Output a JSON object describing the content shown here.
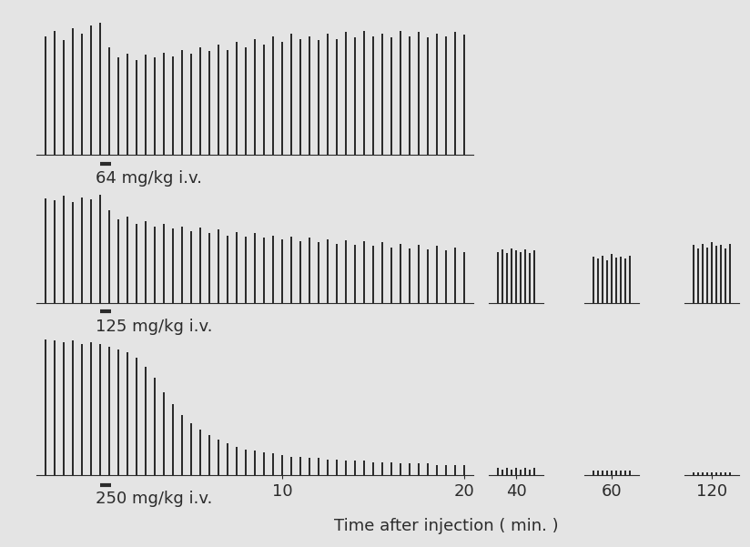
{
  "xlabel": "Time after injection ( min. )",
  "chart_data": [
    {
      "type": "bar",
      "annotation": "64 mg/kg i.v.",
      "color": "#2b2b2b",
      "tick_labels": false,
      "injection": {
        "start": 0,
        "end": 0.6
      },
      "panels": [
        {
          "xlim": [
            -3.5,
            20.5
          ],
          "xticks": [],
          "ylim": [
            0,
            100
          ],
          "x": [
            -3,
            -2.5,
            -2,
            -1.5,
            -1,
            -0.5,
            0,
            0.5,
            1,
            1.5,
            2,
            2.5,
            3,
            3.5,
            4,
            4.5,
            5,
            5.5,
            6,
            6.5,
            7,
            7.5,
            8,
            8.5,
            9,
            9.5,
            10,
            10.5,
            11,
            11.5,
            12,
            12.5,
            13,
            13.5,
            14,
            14.5,
            15,
            15.5,
            16,
            16.5,
            17,
            17.5,
            18,
            18.5,
            19,
            19.5,
            20
          ],
          "values": [
            88,
            92,
            85,
            94,
            90,
            96,
            98,
            80,
            72,
            75,
            70,
            74,
            72,
            76,
            73,
            78,
            75,
            80,
            77,
            82,
            78,
            84,
            80,
            86,
            82,
            88,
            84,
            90,
            86,
            88,
            85,
            90,
            86,
            91,
            87,
            92,
            88,
            90,
            87,
            92,
            88,
            91,
            87,
            90,
            88,
            91,
            89
          ]
        }
      ]
    },
    {
      "type": "bar",
      "annotation": "125 mg/kg i.v.",
      "color": "#2b2b2b",
      "tick_labels": false,
      "injection": {
        "start": 0,
        "end": 0.6
      },
      "panels": [
        {
          "xlim": [
            -3.5,
            20.5
          ],
          "xticks": [],
          "ylim": [
            0,
            100
          ],
          "x": [
            -3,
            -2.5,
            -2,
            -1.5,
            -1,
            -0.5,
            0,
            0.5,
            1,
            1.5,
            2,
            2.5,
            3,
            3.5,
            4,
            4.5,
            5,
            5.5,
            6,
            6.5,
            7,
            7.5,
            8,
            8.5,
            9,
            9.5,
            10,
            10.5,
            11,
            11.5,
            12,
            12.5,
            13,
            13.5,
            14,
            14.5,
            15,
            15.5,
            16,
            16.5,
            17,
            17.5,
            18,
            18.5,
            19,
            19.5,
            20
          ],
          "values": [
            90,
            88,
            92,
            87,
            91,
            89,
            93,
            80,
            72,
            74,
            68,
            70,
            66,
            68,
            64,
            66,
            62,
            65,
            60,
            63,
            58,
            61,
            57,
            60,
            56,
            58,
            55,
            57,
            53,
            56,
            52,
            55,
            51,
            54,
            50,
            53,
            49,
            52,
            48,
            51,
            47,
            50,
            46,
            49,
            45,
            48,
            44
          ]
        },
        {
          "xlim": [
            38.5,
            41.5
          ],
          "xticks": [],
          "ylim": [
            0,
            100
          ],
          "x": [
            39,
            39.25,
            39.5,
            39.75,
            40,
            40.25,
            40.5,
            40.75,
            41
          ],
          "values": [
            44,
            46,
            43,
            47,
            45,
            44,
            46,
            43,
            45
          ]
        },
        {
          "xlim": [
            58.5,
            61.5
          ],
          "xticks": [],
          "ylim": [
            0,
            100
          ],
          "x": [
            59,
            59.25,
            59.5,
            59.75,
            60,
            60.25,
            60.5,
            60.75,
            61
          ],
          "values": [
            40,
            38,
            41,
            37,
            42,
            39,
            40,
            38,
            41
          ]
        },
        {
          "xlim": [
            118.5,
            121.5
          ],
          "xticks": [],
          "ylim": [
            0,
            100
          ],
          "x": [
            119,
            119.25,
            119.5,
            119.75,
            120,
            120.25,
            120.5,
            120.75,
            121
          ],
          "values": [
            50,
            47,
            51,
            48,
            52,
            49,
            50,
            47,
            51
          ]
        }
      ]
    },
    {
      "type": "bar",
      "annotation": "250 mg/kg i.v.",
      "color": "#2b2b2b",
      "tick_labels": "x",
      "injection": {
        "start": 0,
        "end": 0.6
      },
      "panels": [
        {
          "xlim": [
            -3.5,
            20.5
          ],
          "xticks": [
            10,
            20
          ],
          "ylim": [
            0,
            100
          ],
          "x": [
            -3,
            -2.5,
            -2,
            -1.5,
            -1,
            -0.5,
            0,
            0.5,
            1,
            1.5,
            2,
            2.5,
            3,
            3.5,
            4,
            4.5,
            5,
            5.5,
            6,
            6.5,
            7,
            7.5,
            8,
            8.5,
            9,
            9.5,
            10,
            10.5,
            11,
            11.5,
            12,
            12.5,
            13,
            13.5,
            14,
            14.5,
            15,
            15.5,
            16,
            16.5,
            17,
            17.5,
            18,
            18.5,
            19,
            19.5,
            20
          ],
          "values": [
            95,
            94,
            93,
            94,
            92,
            93,
            92,
            90,
            88,
            86,
            82,
            76,
            68,
            58,
            50,
            42,
            36,
            32,
            28,
            25,
            22,
            20,
            18,
            17,
            16,
            15,
            14,
            13,
            13,
            12,
            12,
            11,
            11,
            10,
            10,
            10,
            9,
            9,
            9,
            8,
            8,
            8,
            8,
            7,
            7,
            7,
            7
          ]
        },
        {
          "xlim": [
            38.5,
            41.5
          ],
          "xticks": [
            40
          ],
          "ylim": [
            0,
            100
          ],
          "x": [
            39,
            39.25,
            39.5,
            39.75,
            40,
            40.25,
            40.5,
            40.75,
            41
          ],
          "values": [
            5,
            4,
            5,
            4,
            5,
            4,
            5,
            4,
            5
          ]
        },
        {
          "xlim": [
            58.5,
            61.5
          ],
          "xticks": [
            60
          ],
          "ylim": [
            0,
            100
          ],
          "x": [
            59,
            59.25,
            59.5,
            59.75,
            60,
            60.25,
            60.5,
            60.75,
            61
          ],
          "values": [
            3,
            3,
            3,
            3,
            3,
            3,
            3,
            3,
            3
          ]
        },
        {
          "xlim": [
            118.5,
            121.5
          ],
          "xticks": [
            120
          ],
          "ylim": [
            0,
            100
          ],
          "x": [
            119,
            119.25,
            119.5,
            119.75,
            120,
            120.25,
            120.5,
            120.75,
            121
          ],
          "values": [
            2,
            2,
            2,
            2,
            2,
            2,
            2,
            2,
            2
          ]
        }
      ]
    }
  ]
}
